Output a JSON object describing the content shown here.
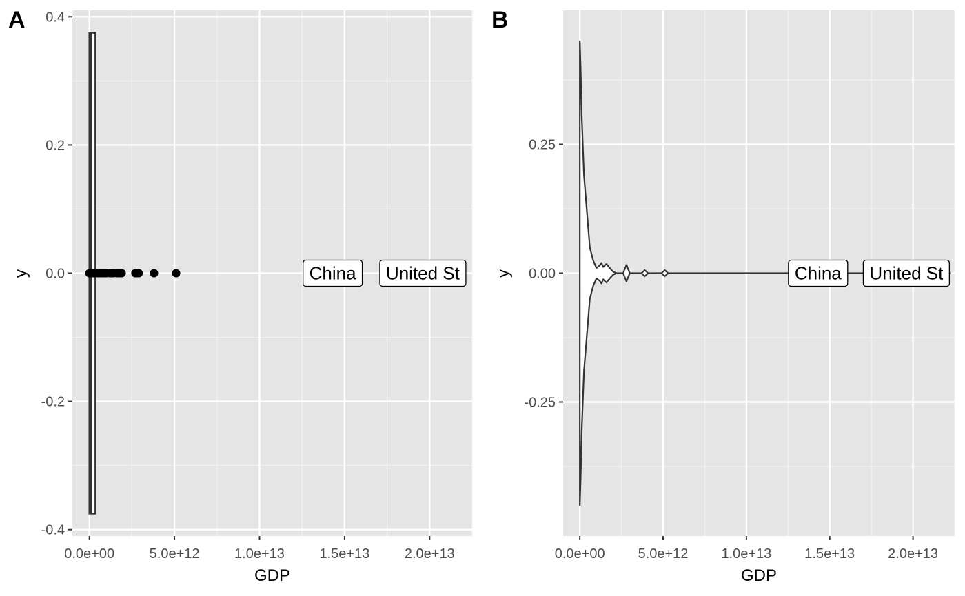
{
  "chart_data": [
    {
      "panel": "A",
      "type": "scatter",
      "xlabel": "GDP",
      "ylabel": "y",
      "xlim": [
        -1000000000000.0,
        22500000000000.0
      ],
      "ylim": [
        -0.41,
        0.41
      ],
      "x_ticks": [
        {
          "value": 0,
          "label": "0.0e+00"
        },
        {
          "value": 5000000000000.0,
          "label": "5.0e+12"
        },
        {
          "value": 10000000000000.0,
          "label": "1.0e+13"
        },
        {
          "value": 15000000000000.0,
          "label": "1.5e+13"
        },
        {
          "value": 20000000000000.0,
          "label": "2.0e+13"
        }
      ],
      "y_ticks": [
        {
          "value": 0.4,
          "label": "0.4"
        },
        {
          "value": 0.2,
          "label": "0.2"
        },
        {
          "value": 0.0,
          "label": "0.0"
        },
        {
          "value": -0.2,
          "label": "-0.2"
        },
        {
          "value": -0.4,
          "label": "-0.4"
        }
      ],
      "boxplot": {
        "q1": 0,
        "median": 100000000000.0,
        "q3": 350000000000.0,
        "ymin": -0.375,
        "ymax": 0.375
      },
      "points": [
        {
          "x": 0.0,
          "y": 0
        },
        {
          "x": 50000000000.0,
          "y": 0
        },
        {
          "x": 100000000000.0,
          "y": 0
        },
        {
          "x": 150000000000.0,
          "y": 0
        },
        {
          "x": 200000000000.0,
          "y": 0
        },
        {
          "x": 300000000000.0,
          "y": 0
        },
        {
          "x": 400000000000.0,
          "y": 0
        },
        {
          "x": 500000000000.0,
          "y": 0
        },
        {
          "x": 600000000000.0,
          "y": 0
        },
        {
          "x": 700000000000.0,
          "y": 0
        },
        {
          "x": 800000000000.0,
          "y": 0
        },
        {
          "x": 900000000000.0,
          "y": 0
        },
        {
          "x": 1000000000000.0,
          "y": 0
        },
        {
          "x": 1200000000000.0,
          "y": 0
        },
        {
          "x": 1300000000000.0,
          "y": 0
        },
        {
          "x": 1400000000000.0,
          "y": 0
        },
        {
          "x": 1600000000000.0,
          "y": 0
        },
        {
          "x": 1700000000000.0,
          "y": 0
        },
        {
          "x": 1800000000000.0,
          "y": 0
        },
        {
          "x": 1900000000000.0,
          "y": 0
        },
        {
          "x": 2700000000000.0,
          "y": 0
        },
        {
          "x": 2800000000000.0,
          "y": 0
        },
        {
          "x": 2900000000000.0,
          "y": 0
        },
        {
          "x": 3800000000000.0,
          "y": 0
        },
        {
          "x": 5100000000000.0,
          "y": 0
        }
      ],
      "labels": [
        {
          "text": "China",
          "x": 14300000000000.0,
          "y": 0
        },
        {
          "text": "United St",
          "x": 19600000000000.0,
          "y": 0
        }
      ]
    },
    {
      "panel": "B",
      "type": "violin",
      "xlabel": "GDP",
      "ylabel": "y",
      "xlim": [
        -1000000000000.0,
        22500000000000.0
      ],
      "ylim": [
        -0.51,
        0.51
      ],
      "x_ticks": [
        {
          "value": 0,
          "label": "0.0e+00"
        },
        {
          "value": 5000000000000.0,
          "label": "5.0e+12"
        },
        {
          "value": 10000000000000.0,
          "label": "1.0e+13"
        },
        {
          "value": 15000000000000.0,
          "label": "1.5e+13"
        },
        {
          "value": 20000000000000.0,
          "label": "2.0e+13"
        }
      ],
      "y_ticks": [
        {
          "value": 0.25,
          "label": "0.25"
        },
        {
          "value": 0.0,
          "label": "0.00"
        },
        {
          "value": -0.25,
          "label": "-0.25"
        }
      ],
      "violin_outline": [
        [
          0.0,
          0.45
        ],
        [
          50000000000.0,
          0.4
        ],
        [
          120000000000.0,
          0.3
        ],
        [
          250000000000.0,
          0.19
        ],
        [
          400000000000.0,
          0.13
        ],
        [
          600000000000.0,
          0.05
        ],
        [
          800000000000.0,
          0.025
        ],
        [
          1000000000000.0,
          0.01
        ],
        [
          1200000000000.0,
          0.015
        ],
        [
          1300000000000.0,
          0.02
        ],
        [
          1400000000000.0,
          0.012
        ],
        [
          1600000000000.0,
          0.018
        ],
        [
          1800000000000.0,
          0.01
        ],
        [
          2000000000000.0,
          0.003
        ],
        [
          2200000000000.0,
          0.0
        ],
        [
          2600000000000.0,
          0.0
        ],
        [
          2800000000000.0,
          0.016
        ],
        [
          3000000000000.0,
          0.0
        ],
        [
          3700000000000.0,
          0.0
        ],
        [
          3900000000000.0,
          0.006
        ],
        [
          4100000000000.0,
          0.0
        ],
        [
          4900000000000.0,
          0.0
        ],
        [
          5100000000000.0,
          0.006
        ],
        [
          5300000000000.0,
          0.0
        ],
        [
          22200000000000.0,
          0.0
        ]
      ],
      "labels": [
        {
          "text": "China",
          "x": 14300000000000.0,
          "y": 0
        },
        {
          "text": "United St",
          "x": 19600000000000.0,
          "y": 0
        }
      ]
    }
  ]
}
